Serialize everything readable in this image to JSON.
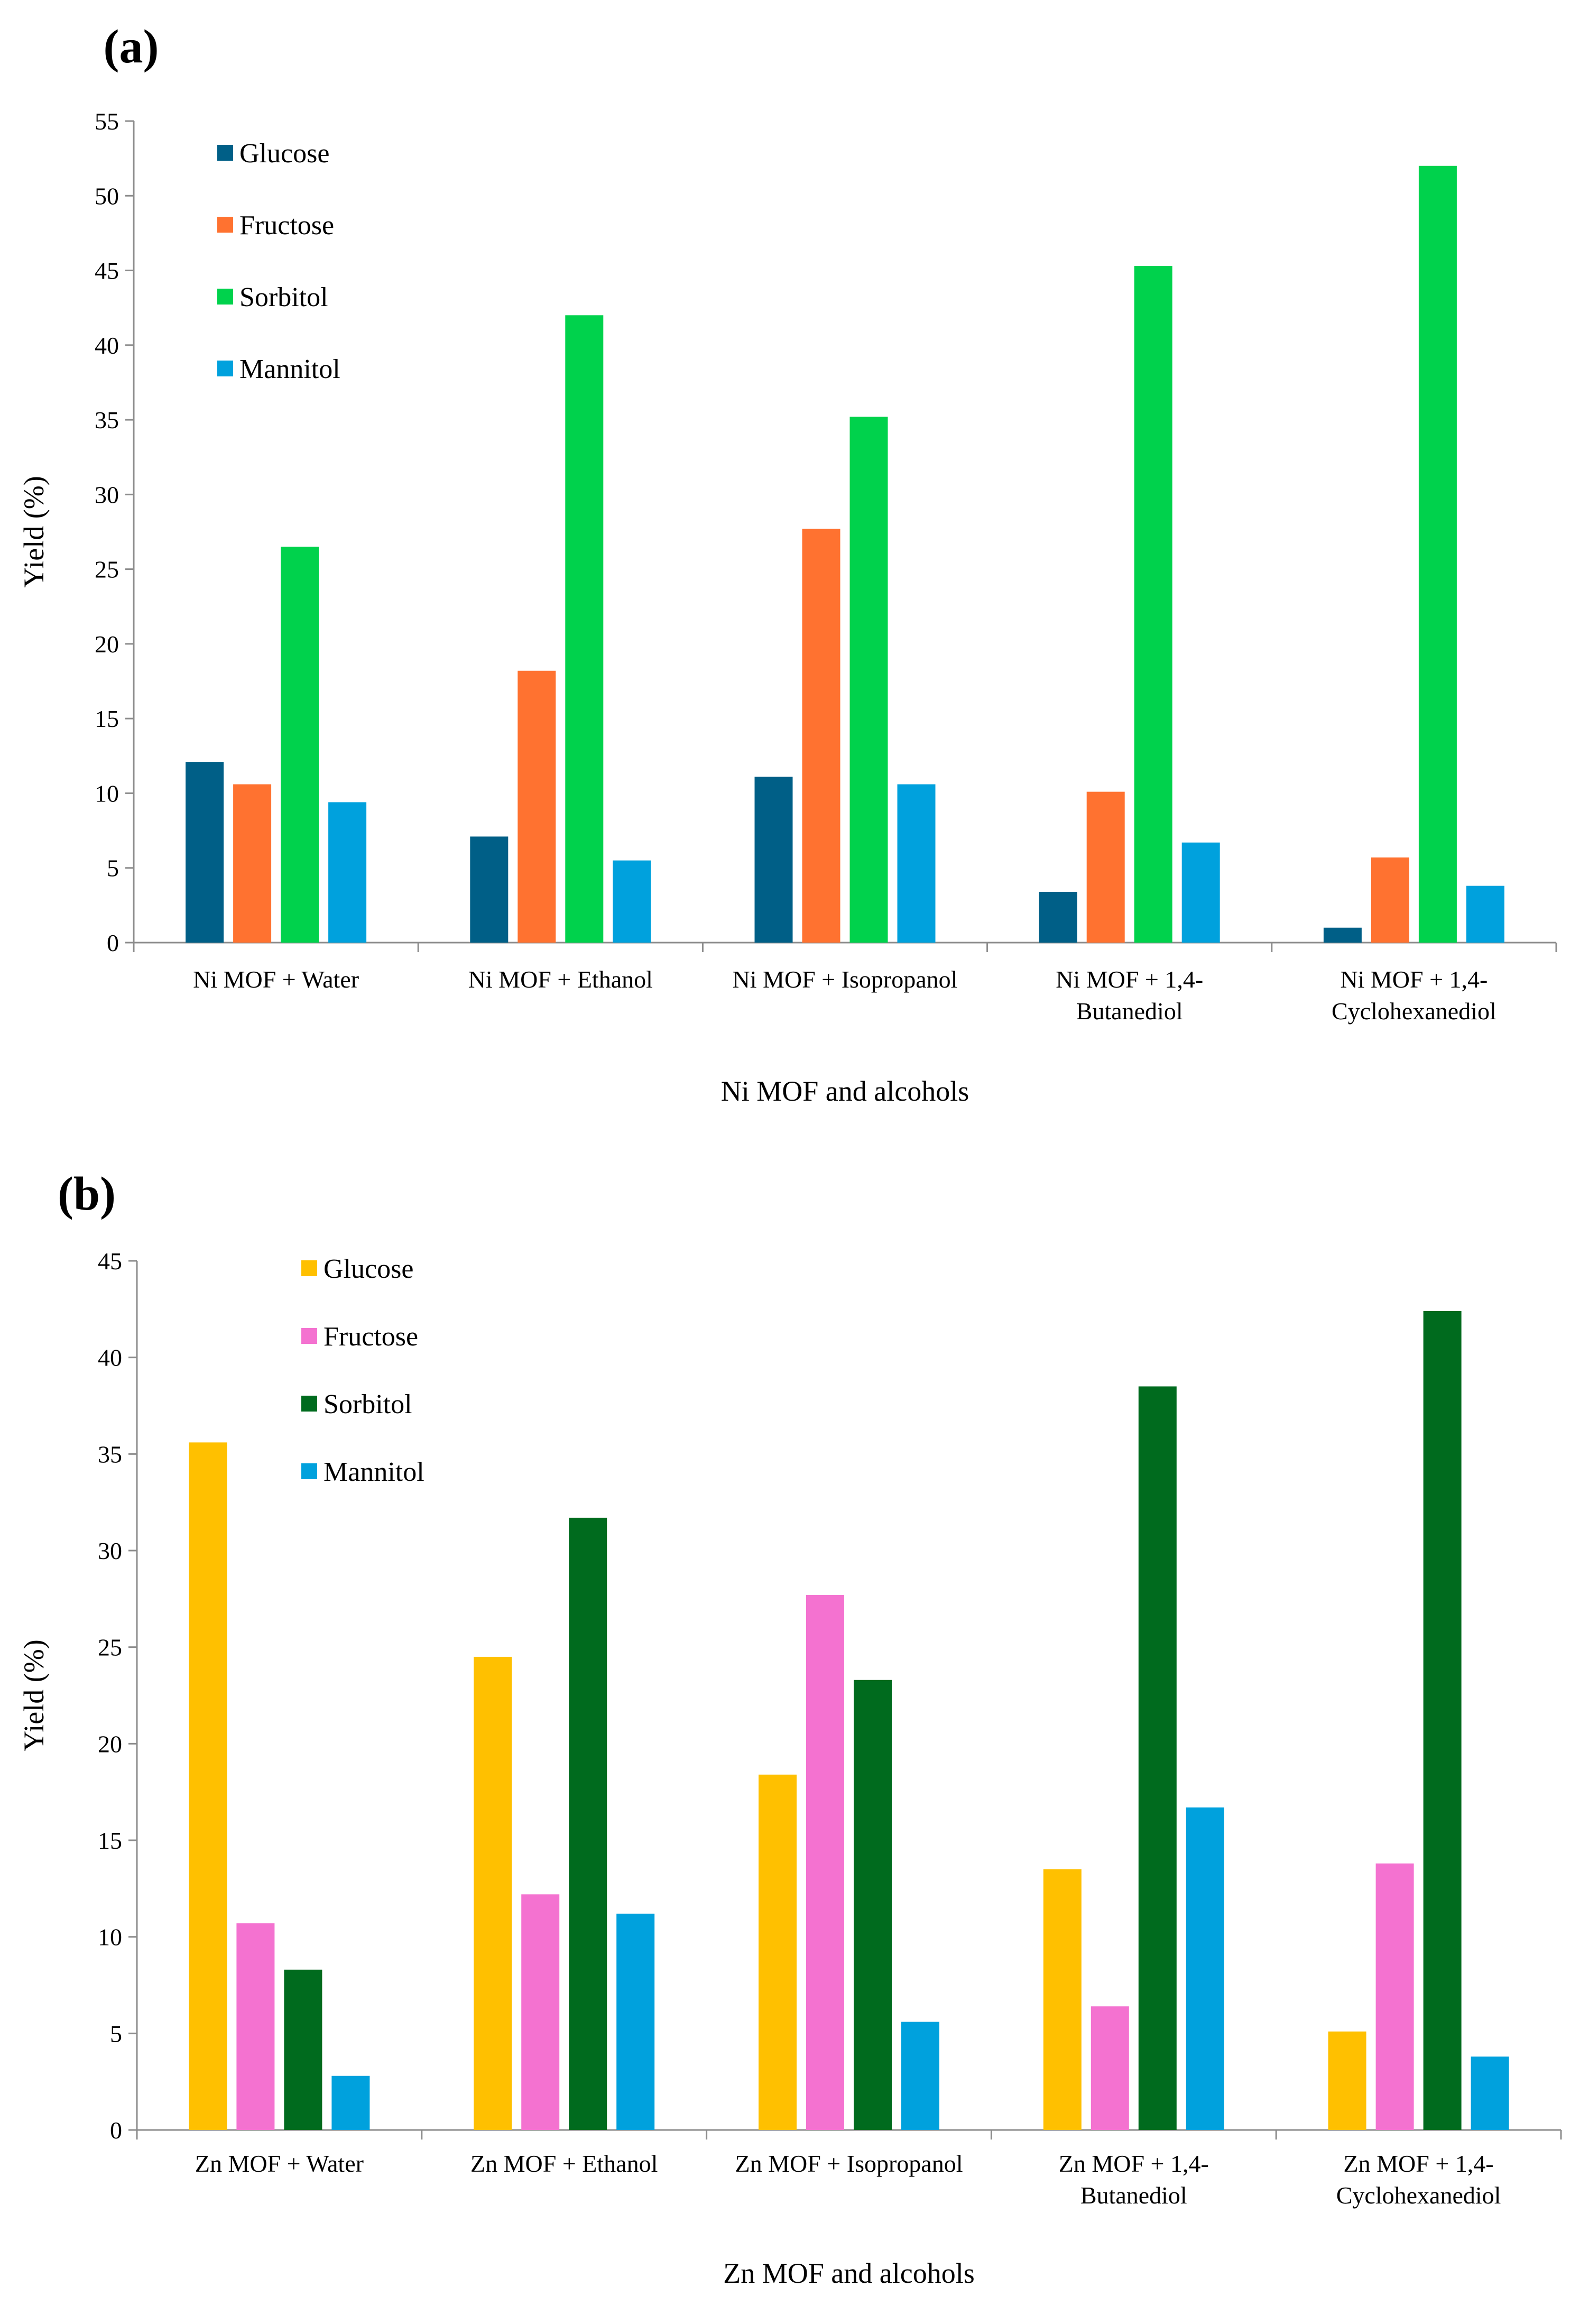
{
  "chart_data": [
    {
      "type": "bar",
      "panel_label": "(a)",
      "title": "",
      "xlabel": "Ni MOF and alcohols",
      "ylabel": "Yield (%)",
      "ylim": [
        0,
        55
      ],
      "yticks": [
        "0",
        "5",
        "10",
        "15",
        "20",
        "25",
        "30",
        "35",
        "40",
        "45",
        "50",
        "55"
      ],
      "categories": [
        [
          "Ni MOF + Water"
        ],
        [
          "Ni MOF + Ethanol"
        ],
        [
          "Ni MOF + Isopropanol"
        ],
        [
          "Ni MOF + 1,4-",
          "Butanediol"
        ],
        [
          "Ni MOF + 1,4-",
          "Cyclohexanediol"
        ]
      ],
      "legend_position": "top-left",
      "grid": false,
      "series": [
        {
          "name": "Glucose",
          "color": "#005f87",
          "values": [
            12.1,
            7.1,
            11.1,
            3.4,
            1.0
          ]
        },
        {
          "name": "Fructose",
          "color": "#ff7230",
          "values": [
            10.6,
            18.2,
            27.7,
            10.1,
            5.7
          ]
        },
        {
          "name": "Sorbitol",
          "color": "#00d24c",
          "values": [
            26.5,
            42.0,
            35.2,
            45.3,
            52.0
          ]
        },
        {
          "name": "Mannitol",
          "color": "#00a1dd",
          "values": [
            9.4,
            5.5,
            10.6,
            6.7,
            3.8
          ]
        }
      ]
    },
    {
      "type": "bar",
      "panel_label": "(b)",
      "title": "",
      "xlabel": "Zn MOF and alcohols",
      "ylabel": "Yield (%)",
      "ylim": [
        0,
        45
      ],
      "yticks": [
        "0",
        "5",
        "10",
        "15",
        "20",
        "25",
        "30",
        "35",
        "40",
        "45"
      ],
      "categories": [
        [
          "Zn MOF + Water"
        ],
        [
          "Zn MOF + Ethanol"
        ],
        [
          "Zn MOF + Isopropanol"
        ],
        [
          "Zn MOF + 1,4-",
          "Butanediol"
        ],
        [
          "Zn MOF + 1,4-",
          "Cyclohexanediol"
        ]
      ],
      "legend_position": "top-left",
      "grid": false,
      "series": [
        {
          "name": "Glucose",
          "color": "#ffc000",
          "values": [
            35.6,
            24.5,
            18.4,
            13.5,
            5.1
          ]
        },
        {
          "name": "Fructose",
          "color": "#f472d0",
          "values": [
            10.7,
            12.2,
            27.7,
            6.4,
            13.8
          ]
        },
        {
          "name": "Sorbitol",
          "color": "#006b1e",
          "values": [
            8.3,
            31.7,
            23.3,
            38.5,
            42.4
          ]
        },
        {
          "name": "Mannitol",
          "color": "#00a1dd",
          "values": [
            2.8,
            11.2,
            5.6,
            16.7,
            3.8
          ]
        }
      ]
    }
  ]
}
